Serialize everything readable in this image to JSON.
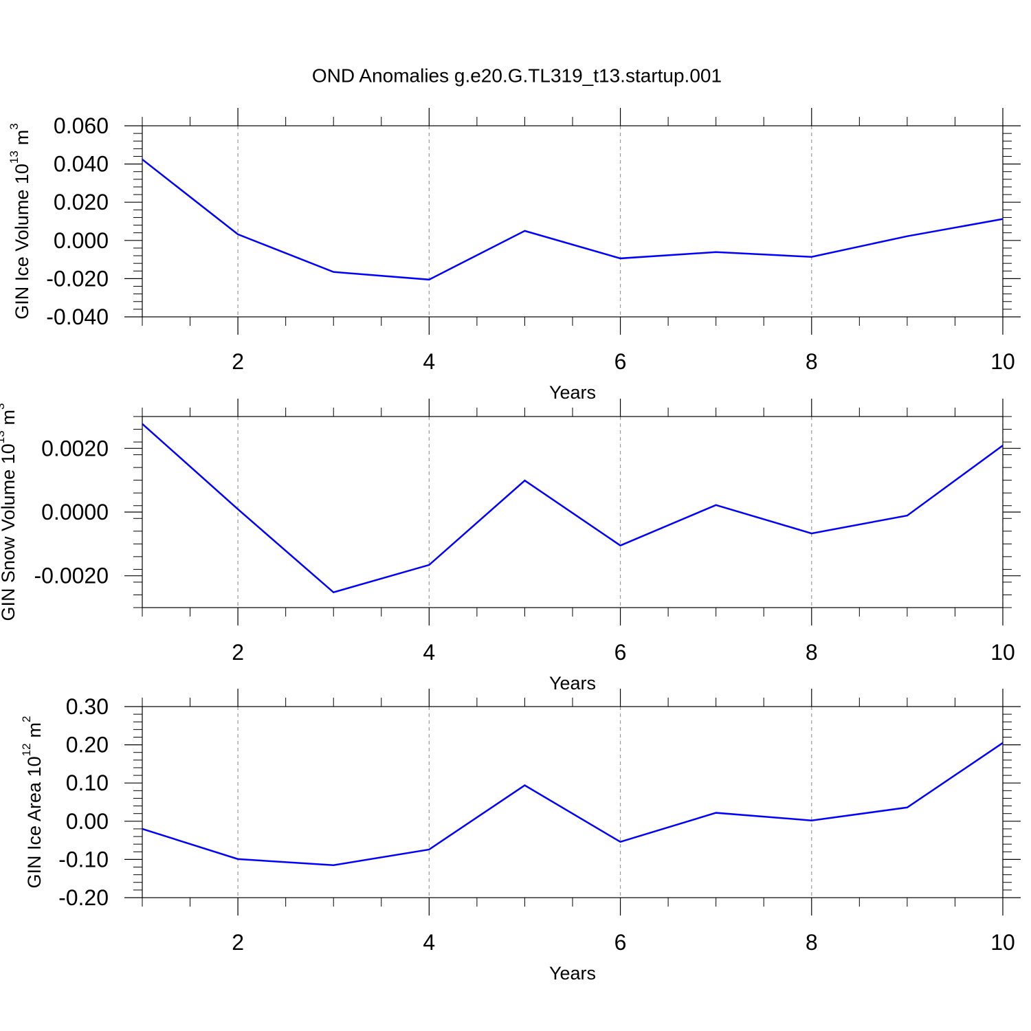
{
  "title": "OND Anomalies g.e20.G.TL319_t13.startup.001",
  "chart_data": [
    {
      "type": "line",
      "xlabel": "Years",
      "ylabel": [
        "GIN Ice Volume 10",
        "13",
        "m",
        "3"
      ],
      "x": [
        1,
        2,
        3,
        4,
        5,
        6,
        7,
        8,
        9,
        10
      ],
      "series": [
        {
          "color": "#0000ff",
          "values": [
            0.0424,
            0.0032,
            -0.0165,
            -0.0205,
            0.005,
            -0.0094,
            -0.0061,
            -0.0086,
            0.0022,
            0.0112
          ]
        }
      ],
      "xlim": [
        1,
        10
      ],
      "xticks": [
        2,
        4,
        6,
        8,
        10
      ],
      "ylim": [
        -0.04,
        0.06
      ],
      "yticks": [
        {
          "value": -0.04,
          "label": "-0.040"
        },
        {
          "value": -0.02,
          "label": "-0.020"
        },
        {
          "value": 0,
          "label": "0.000"
        },
        {
          "value": 0.02,
          "label": "0.020"
        },
        {
          "value": 0.04,
          "label": "0.040"
        },
        {
          "value": 0.06,
          "label": "0.060"
        }
      ],
      "grid": "x"
    },
    {
      "type": "line",
      "xlabel": "Years",
      "ylabel": [
        "GIN Snow Volume 10",
        "13",
        "m",
        "3"
      ],
      "x": [
        1,
        2,
        3,
        4,
        5,
        6,
        7,
        8,
        9,
        10
      ],
      "series": [
        {
          "color": "#0000ff",
          "values": [
            0.00277,
            9e-05,
            -0.00252,
            -0.00166,
            0.00099,
            -0.00105,
            0.00022,
            -0.00067,
            -0.00011,
            0.00209
          ]
        }
      ],
      "xlim": [
        1,
        10
      ],
      "xticks": [
        2,
        4,
        6,
        8,
        10
      ],
      "ylim": [
        -0.003,
        0.003
      ],
      "yticks": [
        {
          "value": -0.002,
          "label": "-0.0020"
        },
        {
          "value": 0,
          "label": "0.0000"
        },
        {
          "value": 0.002,
          "label": "0.0020"
        }
      ],
      "grid": "x"
    },
    {
      "type": "line",
      "xlabel": "Years",
      "ylabel": [
        "GIN Ice Area 10",
        "12",
        "m",
        "2"
      ],
      "x": [
        1,
        2,
        3,
        4,
        5,
        6,
        7,
        8,
        9,
        10
      ],
      "series": [
        {
          "color": "#0000ff",
          "values": [
            -0.02,
            -0.099,
            -0.115,
            -0.074,
            0.094,
            -0.054,
            0.022,
            0.002,
            0.036,
            0.205
          ]
        }
      ],
      "xlim": [
        1,
        10
      ],
      "xticks": [
        2,
        4,
        6,
        8,
        10
      ],
      "ylim": [
        -0.2,
        0.3
      ],
      "yticks": [
        {
          "value": -0.2,
          "label": "-0.20"
        },
        {
          "value": -0.1,
          "label": "-0.10"
        },
        {
          "value": 0,
          "label": "0.00"
        },
        {
          "value": 0.1,
          "label": "0.10"
        },
        {
          "value": 0.2,
          "label": "0.20"
        },
        {
          "value": 0.3,
          "label": "0.30"
        }
      ],
      "grid": "x"
    }
  ]
}
